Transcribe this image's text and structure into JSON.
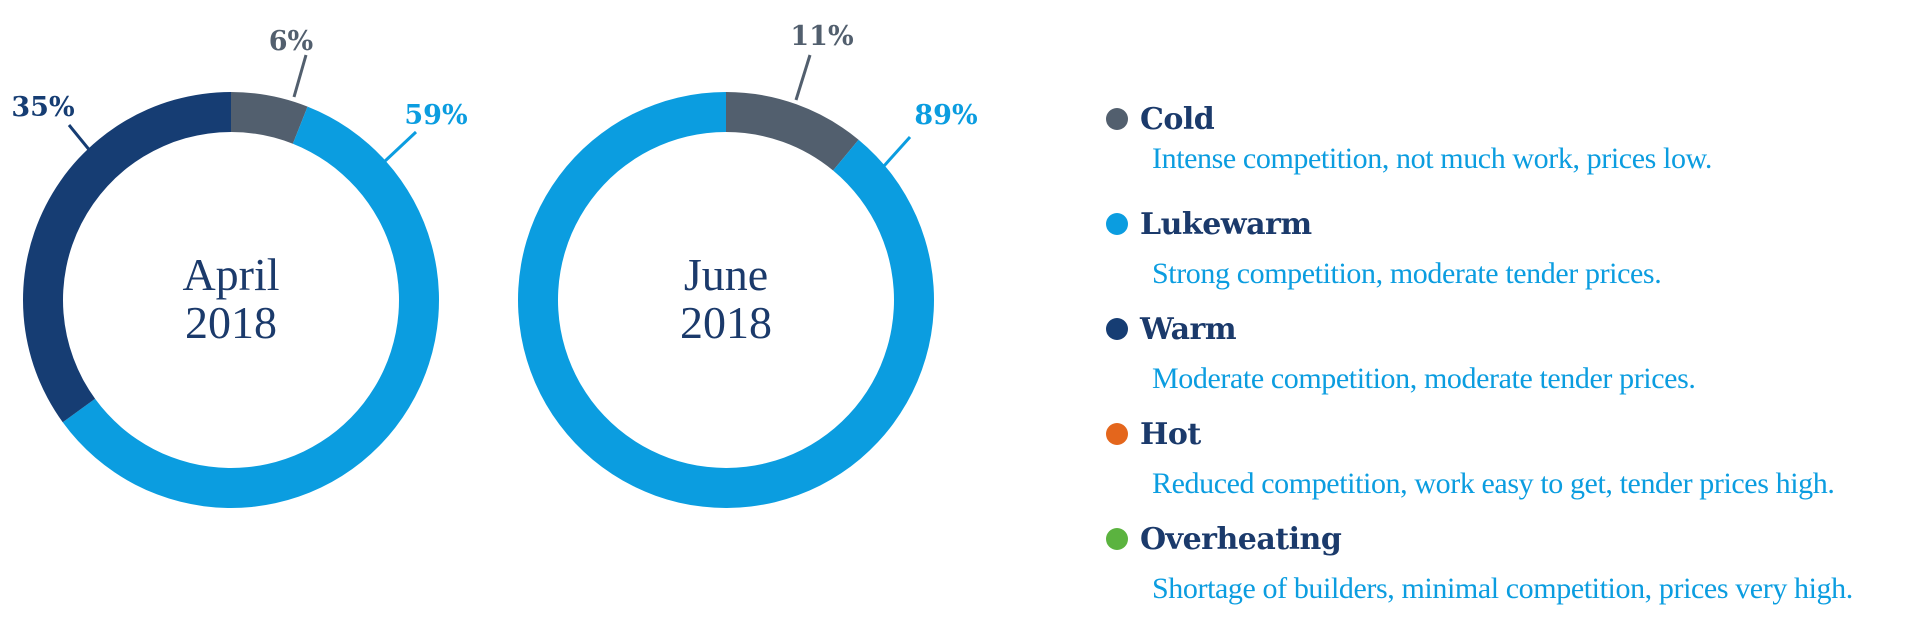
{
  "chart_data": [
    {
      "type": "pie",
      "title": "April 2018",
      "center_lines": [
        "April",
        "2018"
      ],
      "slices": [
        {
          "label": "Cold",
          "value": 6,
          "display": "6%",
          "color": "#525f6e"
        },
        {
          "label": "Lukewarm",
          "value": 59,
          "display": "59%",
          "color": "#0b9de0"
        },
        {
          "label": "Warm",
          "value": 35,
          "display": "35%",
          "color": "#163d73"
        }
      ]
    },
    {
      "type": "pie",
      "title": "June 2018",
      "center_lines": [
        "June",
        "2018"
      ],
      "slices": [
        {
          "label": "Cold",
          "value": 11,
          "display": "11%",
          "color": "#525f6e"
        },
        {
          "label": "Lukewarm",
          "value": 89,
          "display": "89%",
          "color": "#0b9de0"
        }
      ]
    }
  ],
  "legend": [
    {
      "name": "Cold",
      "color": "#525f6e",
      "description": "Intense competition, not much work, prices low."
    },
    {
      "name": "Lukewarm",
      "color": "#0b9de0",
      "description": "Strong competition, moderate tender prices."
    },
    {
      "name": "Warm",
      "color": "#163d73",
      "description": "Moderate competition, moderate tender prices."
    },
    {
      "name": "Hot",
      "color": "#e4661c",
      "description": "Reduced competition, work easy to get, tender prices high."
    },
    {
      "name": "Overheating",
      "color": "#5bb33f",
      "description": "Shortage of builders, minimal competition, prices very high."
    }
  ]
}
